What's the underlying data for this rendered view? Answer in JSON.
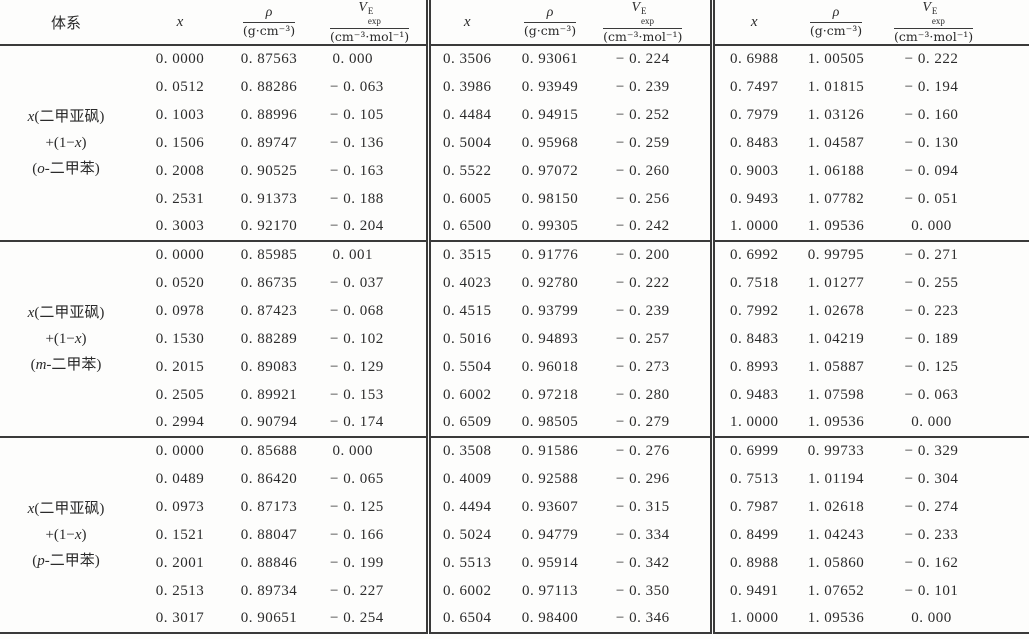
{
  "header": {
    "system": "体系",
    "x": "x",
    "rho_num": "ρ",
    "rho_den": "(g·cm⁻³)",
    "v_base": "V",
    "v_sup": "E",
    "v_sub": "exp",
    "v_den": "(cm⁻³·mol⁻¹)"
  },
  "groups": [
    {
      "label_lines": [
        "x(二甲亚砜)",
        "+(1−x)",
        "(o-二甲苯)"
      ],
      "rows": [
        [
          "0. 0000",
          "0. 87563",
          "0. 000",
          "0. 3506",
          "0. 93061",
          "− 0. 224",
          "0. 6988",
          "1. 00505",
          "− 0. 222"
        ],
        [
          "0. 0512",
          "0. 88286",
          "− 0. 063",
          "0. 3986",
          "0. 93949",
          "− 0. 239",
          "0. 7497",
          "1. 01815",
          "− 0. 194"
        ],
        [
          "0. 1003",
          "0. 88996",
          "− 0. 105",
          "0. 4484",
          "0. 94915",
          "− 0. 252",
          "0. 7979",
          "1. 03126",
          "− 0. 160"
        ],
        [
          "0. 1506",
          "0. 89747",
          "− 0. 136",
          "0. 5004",
          "0. 95968",
          "− 0. 259",
          "0. 8483",
          "1. 04587",
          "− 0. 130"
        ],
        [
          "0. 2008",
          "0. 90525",
          "− 0. 163",
          "0. 5522",
          "0. 97072",
          "− 0. 260",
          "0. 9003",
          "1. 06188",
          "− 0. 094"
        ],
        [
          "0. 2531",
          "0. 91373",
          "− 0. 188",
          "0. 6005",
          "0. 98150",
          "− 0. 256",
          "0. 9493",
          "1. 07782",
          "− 0. 051"
        ],
        [
          "0. 3003",
          "0. 92170",
          "− 0. 204",
          "0. 6500",
          "0. 99305",
          "− 0. 242",
          "1. 0000",
          "1. 09536",
          "0. 000"
        ]
      ]
    },
    {
      "label_lines": [
        "x(二甲亚砜)",
        "+(1−x)",
        "(m-二甲苯)"
      ],
      "rows": [
        [
          "0. 0000",
          "0. 85985",
          "0. 001",
          "0. 3515",
          "0. 91776",
          "− 0. 200",
          "0. 6992",
          "0. 99795",
          "− 0. 271"
        ],
        [
          "0. 0520",
          "0. 86735",
          "− 0. 037",
          "0. 4023",
          "0. 92780",
          "− 0. 222",
          "0. 7518",
          "1. 01277",
          "− 0. 255"
        ],
        [
          "0. 0978",
          "0. 87423",
          "− 0. 068",
          "0. 4515",
          "0. 93799",
          "− 0. 239",
          "0. 7992",
          "1. 02678",
          "− 0. 223"
        ],
        [
          "0. 1530",
          "0. 88289",
          "− 0. 102",
          "0. 5016",
          "0. 94893",
          "− 0. 257",
          "0. 8483",
          "1. 04219",
          "− 0. 189"
        ],
        [
          "0. 2015",
          "0. 89083",
          "− 0. 129",
          "0. 5504",
          "0. 96018",
          "− 0. 273",
          "0. 8993",
          "1. 05887",
          "− 0. 125"
        ],
        [
          "0. 2505",
          "0. 89921",
          "− 0. 153",
          "0. 6002",
          "0. 97218",
          "− 0. 280",
          "0. 9483",
          "1. 07598",
          "− 0. 063"
        ],
        [
          "0. 2994",
          "0. 90794",
          "− 0. 174",
          "0. 6509",
          "0. 98505",
          "− 0. 279",
          "1. 0000",
          "1. 09536",
          "0. 000"
        ]
      ]
    },
    {
      "label_lines": [
        "x(二甲亚砜)",
        "+(1−x)",
        "(p-二甲苯)"
      ],
      "rows": [
        [
          "0. 0000",
          "0. 85688",
          "0. 000",
          "0. 3508",
          "0. 91586",
          "− 0. 276",
          "0. 6999",
          "0. 99733",
          "− 0. 329"
        ],
        [
          "0. 0489",
          "0. 86420",
          "− 0. 065",
          "0. 4009",
          "0. 92588",
          "− 0. 296",
          "0. 7513",
          "1. 01194",
          "− 0. 304"
        ],
        [
          "0. 0973",
          "0. 87173",
          "− 0. 125",
          "0. 4494",
          "0. 93607",
          "− 0. 315",
          "0. 7987",
          "1. 02618",
          "− 0. 274"
        ],
        [
          "0. 1521",
          "0. 88047",
          "− 0. 166",
          "0. 5024",
          "0. 94779",
          "− 0. 334",
          "0. 8499",
          "1. 04243",
          "− 0. 233"
        ],
        [
          "0. 2001",
          "0. 88846",
          "− 0. 199",
          "0. 5513",
          "0. 95914",
          "− 0. 342",
          "0. 8988",
          "1. 05860",
          "− 0. 162"
        ],
        [
          "0. 2513",
          "0. 89734",
          "− 0. 227",
          "0. 6002",
          "0. 97113",
          "− 0. 350",
          "0. 9491",
          "1. 07652",
          "− 0. 101"
        ],
        [
          "0. 3017",
          "0. 90651",
          "− 0. 254",
          "0. 6504",
          "0. 98400",
          "− 0. 346",
          "1. 0000",
          "1. 09536",
          "0. 000"
        ]
      ]
    }
  ]
}
